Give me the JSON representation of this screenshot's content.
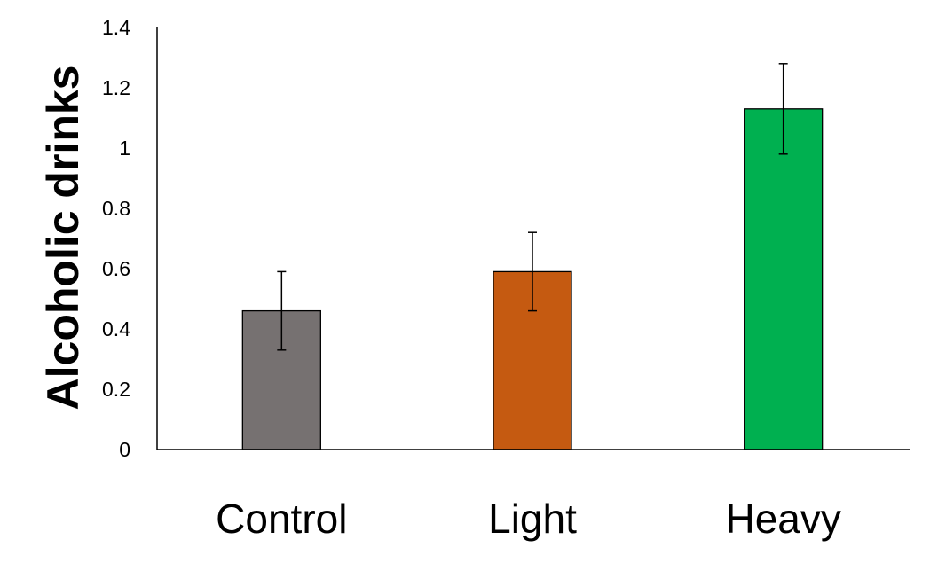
{
  "chart_data": {
    "type": "bar",
    "title": "",
    "xlabel": "",
    "ylabel": "Alcoholic drinks",
    "ylim": [
      0,
      1.4
    ],
    "yticks": [
      "0",
      "0.2",
      "0.4",
      "0.6",
      "0.8",
      "1",
      "1.2",
      "1.4"
    ],
    "categories": [
      "Control",
      "Light",
      "Heavy"
    ],
    "values": [
      0.46,
      0.59,
      1.13
    ],
    "error": [
      0.13,
      0.13,
      0.15
    ],
    "colors": [
      "#767171",
      "#C55A11",
      "#00B050"
    ],
    "grid": false,
    "legend": "none"
  }
}
